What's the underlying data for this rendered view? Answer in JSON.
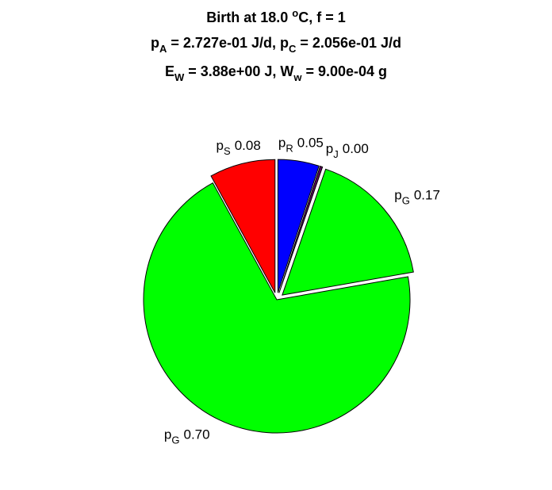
{
  "chart_data": {
    "type": "pie",
    "title_lines": [
      [
        {
          "text": "Birth at 18.0 "
        },
        {
          "sup": "o"
        },
        {
          "text": "C, f = 1"
        }
      ],
      [
        {
          "text": "p"
        },
        {
          "sub": "A"
        },
        {
          "text": " = 2.727e-01 J/d, p"
        },
        {
          "sub": "C"
        },
        {
          "text": " = 2.056e-01 J/d"
        }
      ],
      [
        {
          "text": "E"
        },
        {
          "sub": "W"
        },
        {
          "text": " = 3.88e+00 J, W"
        },
        {
          "sub": "w"
        },
        {
          "text": " = 9.00e-04 g"
        }
      ]
    ],
    "categories": [
      [
        {
          "text": "p"
        },
        {
          "sub": "R"
        }
      ],
      [
        {
          "text": "p"
        },
        {
          "sub": "J"
        }
      ],
      [
        {
          "text": "p"
        },
        {
          "sub": "G"
        }
      ],
      [
        {
          "text": "p"
        },
        {
          "sub": "G"
        }
      ],
      [
        {
          "text": "p"
        },
        {
          "sub": "S"
        }
      ]
    ],
    "values": [
      0.05,
      0.003,
      0.17,
      0.7,
      0.08
    ],
    "value_labels": [
      "0.05",
      "0.00",
      "0.17",
      "0.70",
      "0.08"
    ],
    "colors": [
      "#0000ff",
      "#5a005a",
      "#00ff00",
      "#00ff00",
      "#ff0000"
    ],
    "explode": [
      true,
      true,
      true,
      false,
      true
    ]
  }
}
